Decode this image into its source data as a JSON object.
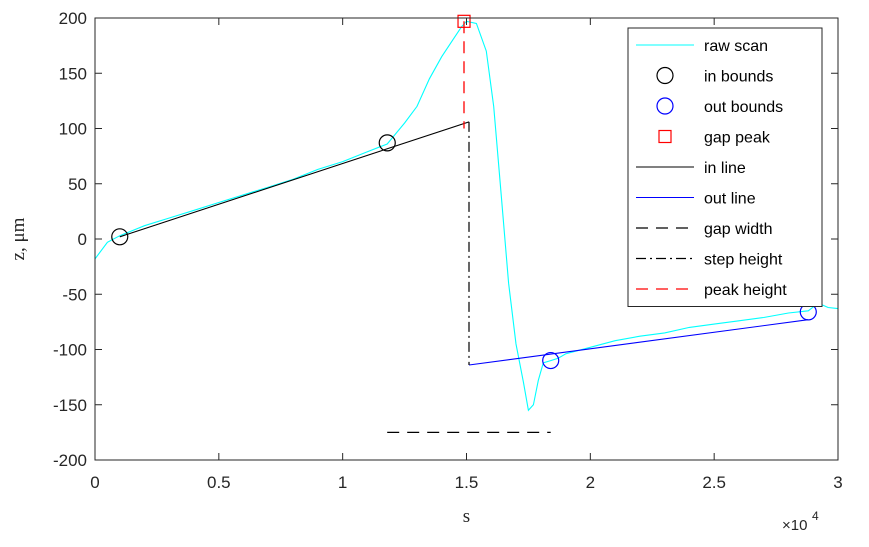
{
  "chart_data": {
    "type": "line",
    "xlabel": "s",
    "ylabel": "z, μm",
    "x_exponent_label": "×10",
    "x_exponent_power": "4",
    "xlim": [
      0,
      30000
    ],
    "ylim": [
      -200,
      200
    ],
    "x_ticks": [
      0,
      5000,
      10000,
      15000,
      20000,
      25000,
      30000
    ],
    "x_tick_labels": [
      "0",
      "0.5",
      "1",
      "1.5",
      "2",
      "2.5",
      "3"
    ],
    "y_ticks": [
      -200,
      -150,
      -100,
      -50,
      0,
      50,
      100,
      150,
      200
    ],
    "y_tick_labels": [
      "-200",
      "-150",
      "-100",
      "-50",
      "0",
      "50",
      "100",
      "150",
      "200"
    ],
    "grid": false,
    "legend_position": "top-right",
    "series": [
      {
        "name": "raw scan",
        "style": "line",
        "color": "#00ffff",
        "x": [
          0,
          500,
          1000,
          2000,
          3000,
          4000,
          5000,
          6000,
          7000,
          8000,
          9000,
          10000,
          11000,
          11800,
          12500,
          13000,
          13500,
          14000,
          14500,
          14800,
          15000,
          15400,
          15800,
          16100,
          16400,
          16700,
          17000,
          17300,
          17500,
          17700,
          17900,
          18100,
          18400,
          18700,
          19000,
          20000,
          21000,
          22000,
          23000,
          24000,
          25000,
          26000,
          27000,
          28000,
          28800,
          29200,
          29600,
          30000
        ],
        "y": [
          -18,
          -3,
          3,
          12,
          19,
          26,
          33,
          40,
          47,
          54,
          63,
          70,
          79,
          86,
          105,
          120,
          145,
          165,
          182,
          192,
          197,
          195,
          170,
          120,
          40,
          -40,
          -95,
          -130,
          -155,
          -150,
          -128,
          -112,
          -110,
          -108,
          -104,
          -98,
          -92,
          -88,
          -85,
          -80,
          -77,
          -74,
          -71,
          -67,
          -65,
          -58,
          -62,
          -63
        ]
      },
      {
        "name": "in bounds",
        "style": "marker-circle",
        "color": "#000000",
        "x": [
          1000,
          11800
        ],
        "y": [
          2,
          87
        ]
      },
      {
        "name": "out bounds",
        "style": "marker-circle",
        "color": "#0000ff",
        "x": [
          18400,
          28800
        ],
        "y": [
          -110,
          -66
        ]
      },
      {
        "name": "gap peak",
        "style": "marker-square",
        "color": "#ff0000",
        "x": [
          14900
        ],
        "y": [
          197
        ]
      },
      {
        "name": "in line",
        "style": "line",
        "color": "#000000",
        "x": [
          1000,
          15100
        ],
        "y": [
          2,
          106
        ]
      },
      {
        "name": "out line",
        "style": "line",
        "color": "#0000ff",
        "x": [
          15100,
          28800
        ],
        "y": [
          -114,
          -73
        ]
      },
      {
        "name": "gap width",
        "style": "dashed",
        "color": "#000000",
        "x": [
          11800,
          18400
        ],
        "y": [
          -175,
          -175
        ]
      },
      {
        "name": "step height",
        "style": "dashdot",
        "color": "#000000",
        "x": [
          15100,
          15100
        ],
        "y": [
          106,
          -114
        ]
      },
      {
        "name": "peak height",
        "style": "dashed",
        "color": "#ff0000",
        "x": [
          14900,
          14900
        ],
        "y": [
          197,
          100
        ]
      }
    ]
  }
}
